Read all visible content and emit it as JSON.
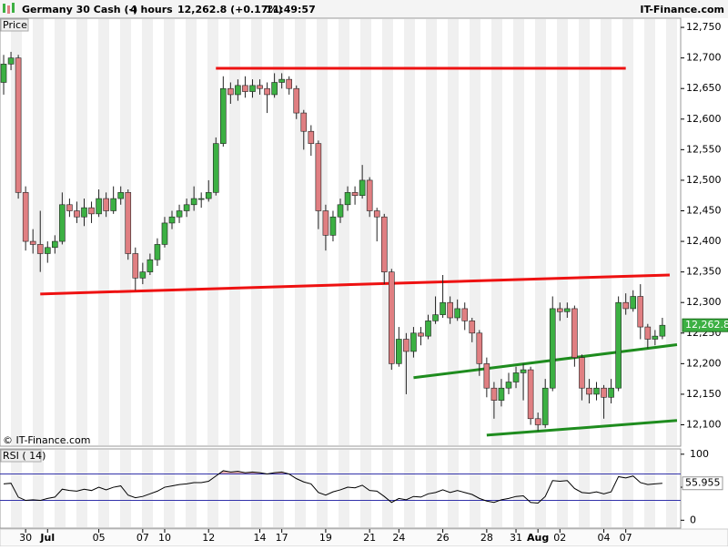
{
  "header": {
    "instrument": "Germany 30 Cash (-)",
    "period": "4 hours",
    "quote": "12,262.8 (+0.17%)",
    "time": "11:49:57",
    "brand": "IT-Finance.com"
  },
  "chart_data": [
    {
      "type": "candlestick",
      "panel_label": "Price",
      "watermark": "© IT-Finance.com",
      "categories": [
        null,
        null,
        null,
        "30",
        null,
        null,
        "Jul",
        null,
        null,
        null,
        null,
        null,
        null,
        "05",
        null,
        null,
        null,
        null,
        null,
        "07",
        null,
        null,
        "10",
        null,
        null,
        null,
        null,
        null,
        "12",
        null,
        null,
        null,
        null,
        null,
        null,
        "14",
        null,
        null,
        "17",
        null,
        null,
        null,
        null,
        null,
        "19",
        null,
        null,
        null,
        null,
        null,
        "21",
        null,
        null,
        null,
        "24",
        null,
        null,
        null,
        null,
        null,
        "26",
        null,
        null,
        null,
        null,
        null,
        "28",
        null,
        null,
        null,
        "31",
        null,
        null,
        "Aug",
        null,
        null,
        "02",
        null,
        null,
        null,
        null,
        null,
        "04",
        null,
        null,
        "07",
        null,
        null,
        null,
        null,
        null
      ],
      "open": [
        12660,
        12690,
        12700,
        12480,
        12400,
        12395,
        12380,
        12390,
        12400,
        12460,
        12450,
        12440,
        12455,
        12445,
        12470,
        12450,
        12470,
        12480,
        12380,
        12340,
        12350,
        12370,
        12395,
        12430,
        12440,
        12450,
        12460,
        12470,
        12470,
        12480,
        12560,
        12650,
        12640,
        12655,
        12645,
        12655,
        12650,
        12640,
        12660,
        12665,
        12650,
        12610,
        12580,
        12560,
        12450,
        12410,
        12440,
        12460,
        12480,
        12475,
        12500,
        12450,
        12440,
        12350,
        12200,
        12240,
        12220,
        12250,
        12245,
        12270,
        12280,
        12300,
        12275,
        12290,
        12270,
        12250,
        12200,
        12160,
        12140,
        12160,
        12170,
        12185,
        12190,
        12110,
        12100,
        12160,
        12290,
        12285,
        12290,
        12210,
        12160,
        12150,
        12160,
        12145,
        12160,
        12300,
        12290,
        12310,
        12260,
        12240,
        12245
      ],
      "high": [
        12705,
        12710,
        12705,
        12490,
        12420,
        12450,
        12400,
        12410,
        12480,
        12470,
        12465,
        12470,
        12465,
        12485,
        12480,
        12490,
        12490,
        12485,
        12390,
        12365,
        12380,
        12405,
        12440,
        12450,
        12460,
        12470,
        12490,
        12480,
        12500,
        12570,
        12670,
        12660,
        12665,
        12670,
        12665,
        12665,
        12660,
        12675,
        12675,
        12670,
        12655,
        12615,
        12590,
        12565,
        12460,
        12450,
        12470,
        12490,
        12490,
        12525,
        12505,
        12455,
        12445,
        12355,
        12260,
        12250,
        12260,
        12260,
        12280,
        12310,
        12345,
        12310,
        12305,
        12300,
        12275,
        12255,
        12210,
        12170,
        12175,
        12185,
        12195,
        12200,
        12195,
        12120,
        12175,
        12310,
        12300,
        12300,
        12295,
        12215,
        12175,
        12170,
        12165,
        12175,
        12310,
        12315,
        12320,
        12330,
        12265,
        12255,
        12275
      ],
      "low": [
        12640,
        12680,
        12470,
        12385,
        12380,
        12350,
        12365,
        12380,
        12395,
        12440,
        12430,
        12425,
        12430,
        12440,
        12440,
        12445,
        12460,
        12370,
        12320,
        12330,
        12345,
        12360,
        12390,
        12420,
        12430,
        12440,
        12450,
        12455,
        12465,
        12475,
        12555,
        12625,
        12630,
        12635,
        12635,
        12640,
        12610,
        12635,
        12650,
        12640,
        12600,
        12550,
        12540,
        12420,
        12385,
        12400,
        12430,
        12450,
        12460,
        12470,
        12440,
        12400,
        12330,
        12190,
        12195,
        12150,
        12210,
        12230,
        12240,
        12265,
        12275,
        12265,
        12270,
        12255,
        12235,
        12180,
        12145,
        12110,
        12130,
        12150,
        12160,
        12140,
        12100,
        12090,
        12095,
        12155,
        12270,
        12275,
        12195,
        12140,
        12135,
        12140,
        12110,
        12135,
        12155,
        12280,
        12285,
        12240,
        12225,
        12230,
        12240
      ],
      "close": [
        12690,
        12700,
        12480,
        12400,
        12395,
        12380,
        12390,
        12400,
        12460,
        12450,
        12440,
        12455,
        12445,
        12470,
        12450,
        12470,
        12480,
        12380,
        12340,
        12350,
        12370,
        12395,
        12430,
        12440,
        12450,
        12460,
        12470,
        12470,
        12480,
        12560,
        12650,
        12640,
        12655,
        12645,
        12655,
        12650,
        12640,
        12660,
        12665,
        12650,
        12610,
        12580,
        12560,
        12450,
        12410,
        12440,
        12460,
        12480,
        12475,
        12500,
        12450,
        12440,
        12350,
        12200,
        12240,
        12220,
        12250,
        12245,
        12270,
        12280,
        12300,
        12275,
        12290,
        12270,
        12250,
        12200,
        12160,
        12140,
        12160,
        12170,
        12185,
        12190,
        12110,
        12100,
        12160,
        12290,
        12285,
        12290,
        12210,
        12160,
        12150,
        12160,
        12145,
        12160,
        12300,
        12290,
        12310,
        12260,
        12240,
        12245,
        12262.8
      ],
      "last_label": "12,262.8",
      "up_color": "#3cb043",
      "down_color": "#e07f82",
      "trend_lines": [
        {
          "color": "#ee1111",
          "x": [
            29,
            85
          ],
          "y": [
            12683,
            12683
          ]
        },
        {
          "color": "#ee1111",
          "x": [
            5,
            91
          ],
          "y": [
            12314,
            12345
          ]
        },
        {
          "color": "#1e8c1e",
          "x": [
            56,
            92
          ],
          "y": [
            12177,
            12231
          ]
        },
        {
          "color": "#1e8c1e",
          "x": [
            66,
            92
          ],
          "y": [
            12083,
            12107
          ]
        }
      ],
      "xlim": [
        -0.5,
        92.5
      ],
      "ylim": [
        12065,
        12765
      ],
      "yticks": [
        {
          "value": 12100,
          "label": "12,100"
        },
        {
          "value": 12150,
          "label": "12,150"
        },
        {
          "value": 12200,
          "label": "12,200"
        },
        {
          "value": 12250,
          "label": "12,250"
        },
        {
          "value": 12300,
          "label": "12,300"
        },
        {
          "value": 12350,
          "label": "12,350"
        },
        {
          "value": 12400,
          "label": "12,400"
        },
        {
          "value": 12450,
          "label": "12,450"
        },
        {
          "value": 12500,
          "label": "12,500"
        },
        {
          "value": 12550,
          "label": "12,550"
        },
        {
          "value": 12600,
          "label": "12,600"
        },
        {
          "value": 12650,
          "label": "12,650"
        },
        {
          "value": 12700,
          "label": "12,700"
        },
        {
          "value": 12750,
          "label": "12,750"
        }
      ]
    },
    {
      "type": "line",
      "panel_label": "RSI ( 14)",
      "color": "#000000",
      "levels": [
        70,
        30
      ],
      "level_color": "#3333aa",
      "fill_color": "#e8b4b4",
      "values": [
        55,
        56,
        35,
        30,
        31,
        30,
        33,
        35,
        47,
        45,
        44,
        47,
        45,
        50,
        46,
        50,
        52,
        38,
        34,
        36,
        40,
        44,
        50,
        52,
        54,
        55,
        57,
        57,
        59,
        67,
        75,
        73,
        74,
        72,
        73,
        72,
        70,
        72,
        73,
        70,
        63,
        58,
        55,
        42,
        38,
        43,
        46,
        50,
        49,
        53,
        45,
        44,
        36,
        27,
        33,
        31,
        36,
        35,
        40,
        42,
        46,
        42,
        45,
        42,
        39,
        33,
        29,
        27,
        31,
        33,
        36,
        37,
        27,
        26,
        36,
        60,
        59,
        60,
        48,
        42,
        41,
        43,
        40,
        43,
        66,
        64,
        67,
        57,
        54,
        55,
        55.955
      ],
      "last_label": "55.955",
      "ylim": [
        -12,
        108
      ],
      "yticks": [
        0,
        50,
        100
      ]
    }
  ]
}
